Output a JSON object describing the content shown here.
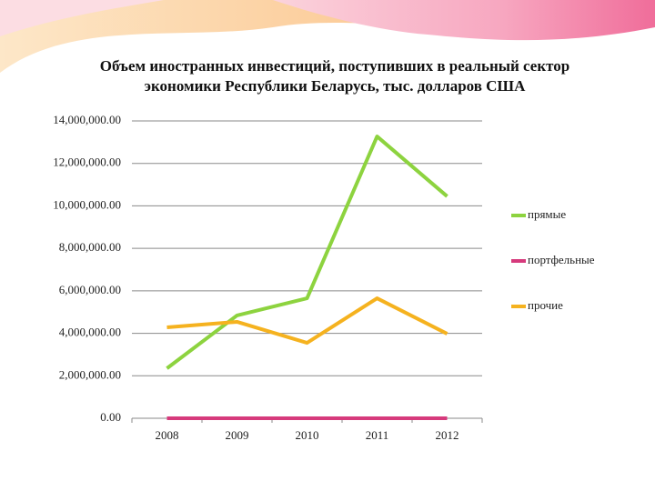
{
  "chart_data": {
    "type": "line",
    "title": "Объем иностранных инвестиций, поступивших в реальный сектор экономики Республики Беларусь, тыс. долларов США",
    "categories": [
      "2008",
      "2009",
      "2010",
      "2011",
      "2012"
    ],
    "series": [
      {
        "name": "прямые",
        "color": "#8dd33f",
        "values": [
          2350000,
          4840000,
          5650000,
          13270000,
          10450000
        ]
      },
      {
        "name": "портфельные",
        "color": "#d63a7c",
        "values": [
          0,
          0,
          0,
          0,
          0
        ]
      },
      {
        "name": "прочие",
        "color": "#f5b21f",
        "values": [
          4280000,
          4540000,
          3550000,
          5650000,
          3980000
        ]
      }
    ],
    "ylim": [
      0,
      14000000
    ],
    "yticks": [
      {
        "value": 0,
        "label": "0.00"
      },
      {
        "value": 2000000,
        "label": "2,000,000.00"
      },
      {
        "value": 4000000,
        "label": "4,000,000.00"
      },
      {
        "value": 6000000,
        "label": "6,000,000.00"
      },
      {
        "value": 8000000,
        "label": "8,000,000.00"
      },
      {
        "value": 10000000,
        "label": "10,000,000.00"
      },
      {
        "value": 12000000,
        "label": "12,000,000.00"
      },
      {
        "value": 14000000,
        "label": "14,000,000.00"
      }
    ],
    "grid": true,
    "legend": "right"
  }
}
